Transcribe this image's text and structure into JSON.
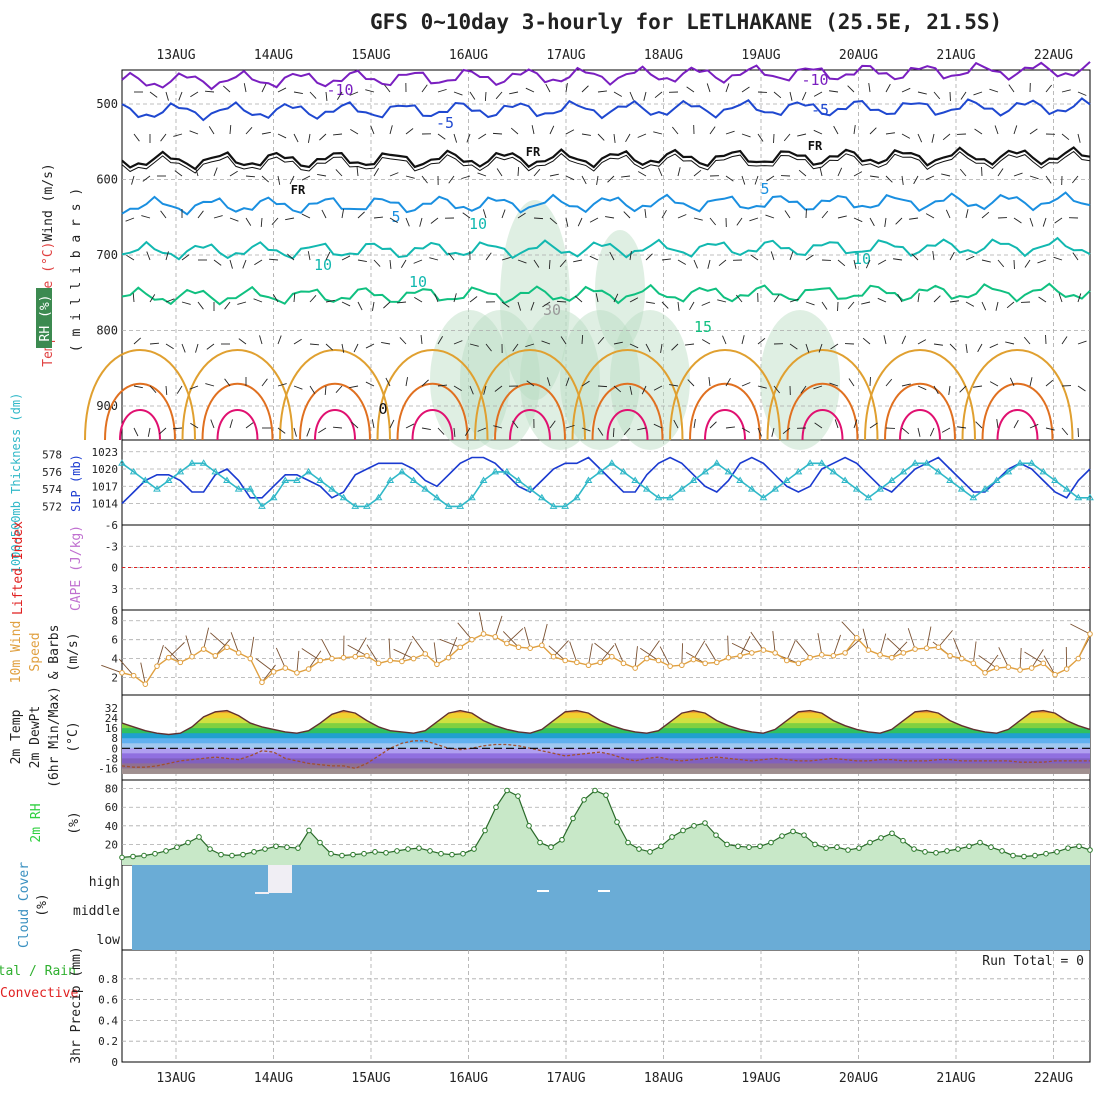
{
  "title": "GFS 0~10day 3-hourly for LETLHAKANE (25.5E, 21.5S)",
  "dates": [
    "13AUG",
    "14AUG",
    "15AUG",
    "16AUG",
    "17AUG",
    "18AUG",
    "19AUG",
    "20AUG",
    "21AUG",
    "22AUG"
  ],
  "colors": {
    "purple": "#7a1fc0",
    "blue": "#1f48d0",
    "lightblue": "#1a8fe0",
    "teal": "#12b8b0",
    "green": "#10c080",
    "orange": "#e0a030",
    "darkorange": "#e07020",
    "magenta": "#e01070",
    "cloud": "#6aacd6",
    "rhgreen": "#30d040",
    "slp": "#1a3ad0",
    "thick": "#30b8c8",
    "wind": "#e0a040",
    "red": "#e02020"
  },
  "chart_data": [
    {
      "type": "contour",
      "panel": "upper-air",
      "ylabel_temperature": "Temperature (°C)",
      "ylabel_wind": "Wind (m/s)",
      "ylabel_rh": "RH (%)",
      "ylabel_pressure": "( m i l l i b a r s )",
      "y_ticks": [
        500,
        600,
        700,
        800,
        900
      ],
      "contour_labels": [
        {
          "text": "-10",
          "level": "-10"
        },
        {
          "text": "-10",
          "level": "-10"
        },
        {
          "text": "-5",
          "level": "-5"
        },
        {
          "text": "-5",
          "level": "-5"
        },
        {
          "text": "FR",
          "level": "0"
        },
        {
          "text": "FR",
          "level": "0"
        },
        {
          "text": "FR",
          "level": "0"
        },
        {
          "text": "5",
          "level": "5"
        },
        {
          "text": "5",
          "level": "5"
        },
        {
          "text": "10",
          "level": "10"
        },
        {
          "text": "10",
          "level": "10"
        },
        {
          "text": "10",
          "level": "10"
        },
        {
          "text": "15",
          "level": "15"
        },
        {
          "text": "0",
          "level": "0"
        },
        {
          "text": "30",
          "level": "30"
        },
        {
          "text": "10",
          "level": "10"
        }
      ],
      "isotherms_hpa": {
        "-10": 470,
        "-5": 510,
        "0": 575,
        "5": 635,
        "10": 695,
        "15": 755
      }
    },
    {
      "type": "line",
      "panel": "slp-thickness",
      "ylabel_left": "1000-500mb Thickness (dm)",
      "ylabel_right": "SLP (mb)",
      "y_ticks_left": [
        572,
        574,
        576,
        578
      ],
      "y_ticks_right": [
        1014,
        1017,
        1020,
        1023
      ],
      "series": [
        {
          "name": "SLP (mb)",
          "values": [
            1014,
            1016,
            1018,
            1019,
            1019,
            1018,
            1016,
            1016,
            1019,
            1020,
            1018,
            1015,
            1015,
            1017,
            1019,
            1019,
            1018,
            1017,
            1015,
            1016,
            1019,
            1020,
            1021,
            1021,
            1021,
            1020,
            1018,
            1017,
            1019,
            1021,
            1022,
            1022,
            1021,
            1019,
            1017,
            1016,
            1018,
            1020,
            1021,
            1021,
            1022,
            1020,
            1018,
            1016,
            1016,
            1019,
            1021,
            1022,
            1021,
            1019,
            1017,
            1016,
            1018,
            1021,
            1022,
            1021,
            1019,
            1017,
            1016,
            1017,
            1020,
            1021,
            1022,
            1021,
            1019,
            1017,
            1016,
            1018,
            1020,
            1021,
            1022,
            1020,
            1018,
            1016,
            1016,
            1018,
            1020,
            1021,
            1020,
            1018,
            1016,
            1015,
            1018,
            1020
          ]
        },
        {
          "name": "Thickness (dm)",
          "values": [
            577,
            576,
            575,
            574,
            575,
            576,
            577,
            577,
            576,
            575,
            574,
            574,
            572,
            573,
            575,
            575,
            576,
            575,
            574,
            573,
            572,
            572,
            573,
            575,
            576,
            575,
            574,
            573,
            572,
            572,
            573,
            575,
            576,
            576,
            575,
            574,
            573,
            572,
            572,
            573,
            575,
            576,
            577,
            576,
            575,
            574,
            573,
            573,
            574,
            575,
            576,
            577,
            576,
            575,
            574,
            573,
            574,
            575,
            576,
            577,
            577,
            576,
            575,
            574,
            573,
            574,
            575,
            576,
            577,
            577,
            576,
            575,
            574,
            573,
            574,
            575,
            576,
            577,
            577,
            576,
            575,
            574,
            573,
            573
          ]
        }
      ]
    },
    {
      "type": "line",
      "panel": "stability",
      "ylabel_left": "Lifted Index",
      "ylabel_right": "CAPE (J/kg)",
      "y_ticks": [
        "-6",
        "-3",
        "0",
        "3",
        "6"
      ]
    },
    {
      "type": "line",
      "panel": "wind10m",
      "ylabel": "10m Wind Speed & Barbs (m/s)",
      "ylabel_lines": [
        "10m Wind",
        "Speed",
        "& Barbs",
        "(m/s)"
      ],
      "y_ticks": [
        2,
        4,
        6,
        8
      ],
      "values": [
        2.5,
        2.2,
        1.3,
        3.2,
        4.1,
        3.6,
        4.2,
        5.0,
        4.3,
        5.2,
        4.6,
        4.0,
        1.5,
        2.6,
        3.0,
        2.5,
        2.9,
        3.8,
        4.0,
        4.1,
        4.2,
        4.3,
        3.5,
        3.8,
        3.7,
        4.0,
        4.5,
        3.4,
        4.1,
        5.2,
        6.0,
        6.6,
        6.3,
        5.6,
        5.2,
        5.1,
        5.4,
        4.2,
        3.8,
        3.6,
        3.3,
        3.6,
        4.2,
        3.5,
        3.0,
        4.0,
        3.8,
        3.2,
        3.3,
        3.9,
        3.5,
        3.6,
        4.1,
        4.3,
        4.6,
        4.9,
        4.6,
        3.8,
        3.5,
        4.1,
        4.4,
        4.3,
        4.6,
        6.2,
        4.9,
        4.4,
        4.1,
        4.6,
        5.0,
        5.1,
        5.2,
        4.3,
        4.0,
        3.5,
        2.5,
        3.0,
        3.1,
        2.8,
        3.0,
        3.5,
        2.3,
        2.9,
        4.0,
        6.6
      ]
    },
    {
      "type": "area",
      "panel": "temp2m",
      "ylabel_lines": [
        "2m Temp",
        "2m DewPt",
        "(6hr Min/Max)",
        "(°C)"
      ],
      "y_ticks": [
        32,
        24,
        16,
        8,
        0,
        -8,
        -16
      ],
      "series": [
        {
          "name": "2m Temp",
          "values": [
            20,
            17,
            14,
            12,
            11,
            12,
            17,
            25,
            29,
            30,
            26,
            20,
            17,
            15,
            13,
            12,
            14,
            20,
            27,
            30,
            28,
            22,
            17,
            14,
            13,
            12,
            14,
            21,
            28,
            30,
            28,
            22,
            18,
            15,
            13,
            12,
            15,
            22,
            29,
            30,
            28,
            22,
            18,
            15,
            13,
            12,
            14,
            21,
            28,
            30,
            28,
            22,
            18,
            15,
            13,
            12,
            15,
            22,
            29,
            30,
            28,
            22,
            18,
            15,
            13,
            12,
            15,
            22,
            29,
            30,
            28,
            22,
            18,
            15,
            13,
            12,
            15,
            22,
            29,
            30,
            28,
            22,
            18,
            15
          ]
        },
        {
          "name": "2m DewPt",
          "values": [
            -14,
            -15,
            -15,
            -14,
            -12,
            -10,
            -9,
            -8,
            -7,
            -8,
            -9,
            -6,
            -2,
            -3,
            -8,
            -10,
            -12,
            -13,
            -14,
            -14,
            -16,
            -12,
            -6,
            0,
            4,
            6,
            6,
            3,
            0,
            -1,
            0,
            2,
            3,
            3,
            2,
            0,
            -2,
            -4,
            -6,
            -5,
            -4,
            -3,
            -5,
            -8,
            -10,
            -8,
            -7,
            -9,
            -10,
            -9,
            -8,
            -7,
            -8,
            -9,
            -10,
            -9,
            -8,
            -9,
            -10,
            -10,
            -9,
            -8,
            -9,
            -10,
            -10,
            -9,
            -9,
            -10,
            -10,
            -10,
            -9,
            -9,
            -10,
            -10,
            -10,
            -10,
            -10,
            -11,
            -11,
            -11,
            -10,
            -10,
            -10,
            -10
          ]
        }
      ]
    },
    {
      "type": "area",
      "panel": "rh2m",
      "ylabel": "2m RH",
      "yunit": "(%)",
      "y_ticks": [
        20,
        40,
        60,
        80
      ],
      "values": [
        6,
        7,
        8,
        10,
        13,
        17,
        22,
        28,
        15,
        9,
        8,
        9,
        12,
        15,
        18,
        17,
        16,
        35,
        22,
        10,
        8,
        9,
        10,
        12,
        11,
        13,
        15,
        16,
        13,
        10,
        9,
        10,
        15,
        35,
        60,
        78,
        72,
        40,
        22,
        17,
        25,
        48,
        68,
        78,
        73,
        44,
        22,
        15,
        12,
        18,
        28,
        35,
        40,
        43,
        30,
        20,
        18,
        17,
        18,
        22,
        29,
        34,
        30,
        20,
        16,
        17,
        14,
        16,
        22,
        27,
        32,
        24,
        15,
        12,
        11,
        13,
        15,
        18,
        22,
        17,
        13,
        8,
        7,
        8,
        10,
        12,
        16,
        18,
        14
      ]
    },
    {
      "type": "heatmap",
      "panel": "cloud",
      "ylabel_lines": [
        "Cloud Cover",
        "(%)"
      ],
      "y_ticks": [
        "high",
        "middle",
        "low"
      ]
    },
    {
      "type": "bar",
      "panel": "precip",
      "ylabel_left": "Total / Rain",
      "ylabel_left2": "Convective",
      "ylabel_right": "3hr Precip (mm)",
      "annotation": "Run Total = 0",
      "y_ticks": [
        0,
        0.2,
        0.4,
        0.6,
        0.8
      ],
      "ylim": [
        0,
        1
      ],
      "values": []
    }
  ]
}
